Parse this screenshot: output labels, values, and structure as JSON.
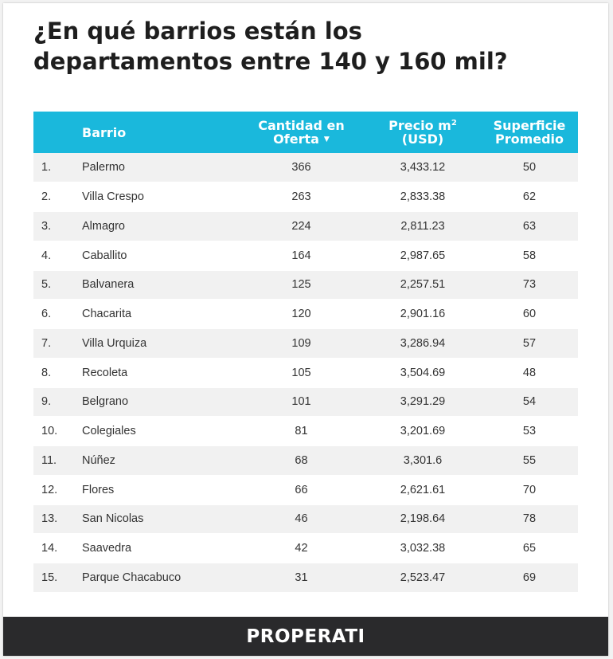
{
  "colors": {
    "header_bg": "#1ab8dc",
    "row_alt": "#f1f1f1",
    "footer_bg": "#2a2a2c",
    "title": "#1e1e1e"
  },
  "title_line1": "¿En qué barrios están los",
  "title_line2": "departamentos entre 140 y 160 mil?",
  "chart_data": {
    "type": "table",
    "title": "¿En qué barrios están los departamentos entre 140 y 160 mil?",
    "columns": {
      "rank": "",
      "barrio": "Barrio",
      "cantidad_line1": "Cantidad en",
      "cantidad_line2": "Oferta",
      "precio_line1": "Precio m",
      "precio_sup": "2",
      "precio_line2": "(USD)",
      "superficie_line1": "Superficie",
      "superficie_line2": "Promedio"
    },
    "sort_indicator": "▼",
    "rows": [
      {
        "rank": "1.",
        "barrio": "Palermo",
        "cantidad": "366",
        "precio": "3,433.12",
        "superficie": "50"
      },
      {
        "rank": "2.",
        "barrio": "Villa Crespo",
        "cantidad": "263",
        "precio": "2,833.38",
        "superficie": "62"
      },
      {
        "rank": "3.",
        "barrio": "Almagro",
        "cantidad": "224",
        "precio": "2,811.23",
        "superficie": "63"
      },
      {
        "rank": "4.",
        "barrio": "Caballito",
        "cantidad": "164",
        "precio": "2,987.65",
        "superficie": "58"
      },
      {
        "rank": "5.",
        "barrio": "Balvanera",
        "cantidad": "125",
        "precio": "2,257.51",
        "superficie": "73"
      },
      {
        "rank": "6.",
        "barrio": "Chacarita",
        "cantidad": "120",
        "precio": "2,901.16",
        "superficie": "60"
      },
      {
        "rank": "7.",
        "barrio": "Villa Urquiza",
        "cantidad": "109",
        "precio": "3,286.94",
        "superficie": "57"
      },
      {
        "rank": "8.",
        "barrio": "Recoleta",
        "cantidad": "105",
        "precio": "3,504.69",
        "superficie": "48"
      },
      {
        "rank": "9.",
        "barrio": "Belgrano",
        "cantidad": "101",
        "precio": "3,291.29",
        "superficie": "54"
      },
      {
        "rank": "10.",
        "barrio": "Colegiales",
        "cantidad": "81",
        "precio": "3,201.69",
        "superficie": "53"
      },
      {
        "rank": "11.",
        "barrio": "Núñez",
        "cantidad": "68",
        "precio": "3,301.6",
        "superficie": "55"
      },
      {
        "rank": "12.",
        "barrio": "Flores",
        "cantidad": "66",
        "precio": "2,621.61",
        "superficie": "70"
      },
      {
        "rank": "13.",
        "barrio": "San Nicolas",
        "cantidad": "46",
        "precio": "2,198.64",
        "superficie": "78"
      },
      {
        "rank": "14.",
        "barrio": "Saavedra",
        "cantidad": "42",
        "precio": "3,032.38",
        "superficie": "65"
      },
      {
        "rank": "15.",
        "barrio": "Parque Chacabuco",
        "cantidad": "31",
        "precio": "2,523.47",
        "superficie": "69"
      }
    ]
  },
  "footer": {
    "brand": "PROPERATI"
  }
}
